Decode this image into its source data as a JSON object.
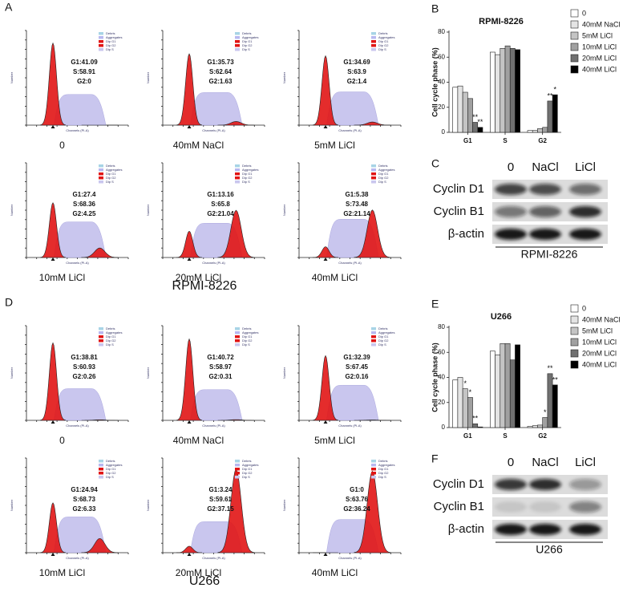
{
  "flow_panels": [
    {
      "letter": "A",
      "cell_line": "RPMI-8226",
      "axis_x": "Channels (PI-A)",
      "axis_y": "Number",
      "legend": [
        "Debris",
        "Aggregates",
        "Dip G1",
        "Dip G2",
        "Dip S"
      ],
      "histograms": [
        {
          "label": "0",
          "stats": [
            {
              "value": 41.09,
              "label": "G1:41.09"
            },
            {
              "value": 58.91,
              "label": "S:58.91"
            },
            {
              "value": 0,
              "label": "G2:0"
            }
          ]
        },
        {
          "label": "40mM NaCl",
          "stats": [
            {
              "value": 35.73,
              "label": "G1:35.73"
            },
            {
              "value": 62.64,
              "label": "S:62.64"
            },
            {
              "value": 1.63,
              "label": "G2:1.63"
            }
          ]
        },
        {
          "label": "5mM LiCl",
          "stats": [
            {
              "value": 34.69,
              "label": "G1:34.69"
            },
            {
              "value": 63.9,
              "label": "S:63.9"
            },
            {
              "value": 1.4,
              "label": "G2:1.4"
            }
          ]
        },
        {
          "label": "10mM LiCl",
          "stats": [
            {
              "value": 27.4,
              "label": "G1:27.4"
            },
            {
              "value": 68.36,
              "label": "S:68.36"
            },
            {
              "value": 4.25,
              "label": "G2:4.25"
            }
          ]
        },
        {
          "label": "20mM LiCl",
          "stats": [
            {
              "value": 13.16,
              "label": "G1:13.16"
            },
            {
              "value": 65.8,
              "label": "S:65.8"
            },
            {
              "value": 21.04,
              "label": "G2:21.04"
            }
          ]
        },
        {
          "label": "40mM LiCl",
          "stats": [
            {
              "value": 5.38,
              "label": "G1:5.38"
            },
            {
              "value": 73.48,
              "label": "S:73.48"
            },
            {
              "value": 21.14,
              "label": "G2:21.14"
            }
          ]
        }
      ]
    },
    {
      "letter": "D",
      "cell_line": "U266",
      "axis_x": "Channels (PI-A)",
      "axis_y": "Number",
      "legend": [
        "Debris",
        "Aggregates",
        "Dip G1",
        "Dip G2",
        "Dip S"
      ],
      "histograms": [
        {
          "label": "0",
          "stats": [
            {
              "value": 38.81,
              "label": "G1:38.81"
            },
            {
              "value": 60.93,
              "label": "S:60.93"
            },
            {
              "value": 0.26,
              "label": "G2:0.26"
            }
          ]
        },
        {
          "label": "40mM NaCl",
          "stats": [
            {
              "value": 40.72,
              "label": "G1:40.72"
            },
            {
              "value": 58.97,
              "label": "S:58.97"
            },
            {
              "value": 0.31,
              "label": "G2:0.31"
            }
          ]
        },
        {
          "label": "5mM LiCl",
          "stats": [
            {
              "value": 32.39,
              "label": "G1:32.39"
            },
            {
              "value": 67.45,
              "label": "S:67.45"
            },
            {
              "value": 0.16,
              "label": "G2:0.16"
            }
          ]
        },
        {
          "label": "10mM LiCl",
          "stats": [
            {
              "value": 24.94,
              "label": "G1:24.94"
            },
            {
              "value": 68.73,
              "label": "S:68.73"
            },
            {
              "value": 6.33,
              "label": "G2:6.33"
            }
          ]
        },
        {
          "label": "20mM LiCl",
          "stats": [
            {
              "value": 3.24,
              "label": "G1:3.24"
            },
            {
              "value": 59.61,
              "label": "S:59.61"
            },
            {
              "value": 37.15,
              "label": "G2:37.15"
            }
          ]
        },
        {
          "label": "40mM LiCl",
          "stats": [
            {
              "value": 0,
              "label": "G1:0"
            },
            {
              "value": 63.76,
              "label": "S:63.76"
            },
            {
              "value": 36.24,
              "label": "G2:36.24"
            }
          ]
        }
      ]
    }
  ],
  "chart_data": [
    {
      "type": "bar",
      "letter": "B",
      "title": "RPMI-8226",
      "y_label": "Cell cycle phase (%)",
      "categories": [
        "G1",
        "S",
        "G2"
      ],
      "ylim": [
        0,
        80
      ],
      "yticks": [
        0,
        20,
        40,
        60,
        80
      ],
      "series": [
        {
          "name": "0",
          "color": "#ffffff",
          "values": [
            36,
            64,
            1.5
          ],
          "sig": [
            null,
            null,
            null
          ]
        },
        {
          "name": "40mM NaCl",
          "color": "#e4e4e4",
          "values": [
            37,
            62,
            1.5
          ],
          "sig": [
            null,
            null,
            null
          ]
        },
        {
          "name": "5mM LiCl",
          "color": "#c4c4c4",
          "values": [
            32,
            67,
            3
          ],
          "sig": [
            null,
            null,
            null
          ]
        },
        {
          "name": "10mM LiCl",
          "color": "#a0a0a0",
          "values": [
            27,
            69,
            4
          ],
          "sig": [
            null,
            null,
            null
          ]
        },
        {
          "name": "20mM LiCl",
          "color": "#707070",
          "values": [
            8,
            67,
            25
          ],
          "sig": [
            "**",
            null,
            "**"
          ]
        },
        {
          "name": "40mM LiCl",
          "color": "#000000",
          "values": [
            4,
            66,
            30
          ],
          "sig": [
            "**",
            null,
            "*"
          ]
        }
      ]
    },
    {
      "type": "bar",
      "letter": "E",
      "title": "U266",
      "y_label": "Cell cycle phase (%)",
      "categories": [
        "G1",
        "S",
        "G2"
      ],
      "ylim": [
        0,
        80
      ],
      "yticks": [
        0,
        20,
        40,
        60,
        80
      ],
      "series": [
        {
          "name": "0",
          "color": "#ffffff",
          "values": [
            38,
            61,
            1
          ],
          "sig": [
            null,
            null,
            null
          ]
        },
        {
          "name": "40mM NaCl",
          "color": "#e4e4e4",
          "values": [
            40,
            58,
            1.5
          ],
          "sig": [
            null,
            null,
            null
          ]
        },
        {
          "name": "5mM LiCl",
          "color": "#c4c4c4",
          "values": [
            31,
            67,
            2
          ],
          "sig": [
            "*",
            null,
            null
          ]
        },
        {
          "name": "10mM LiCl",
          "color": "#a0a0a0",
          "values": [
            24,
            67,
            8
          ],
          "sig": [
            "*",
            null,
            "*"
          ]
        },
        {
          "name": "20mM LiCl",
          "color": "#707070",
          "values": [
            3,
            54,
            43
          ],
          "sig": [
            "**",
            null,
            "**"
          ]
        },
        {
          "name": "40mM LiCl",
          "color": "#000000",
          "values": [
            0.5,
            66,
            34
          ],
          "sig": [
            null,
            null,
            "**"
          ]
        }
      ]
    }
  ],
  "blots": [
    {
      "letter": "C",
      "lanes": [
        "0",
        "NaCl",
        "LiCl"
      ],
      "rows": [
        "Cyclin D1",
        "Cyclin B1",
        "β-actin"
      ],
      "cell_line": "RPMI-8226"
    },
    {
      "letter": "F",
      "lanes": [
        "0",
        "NaCl",
        "LiCl"
      ],
      "rows": [
        "Cyclin D1",
        "Cyclin B1",
        "β-actin"
      ],
      "cell_line": "U266"
    }
  ]
}
